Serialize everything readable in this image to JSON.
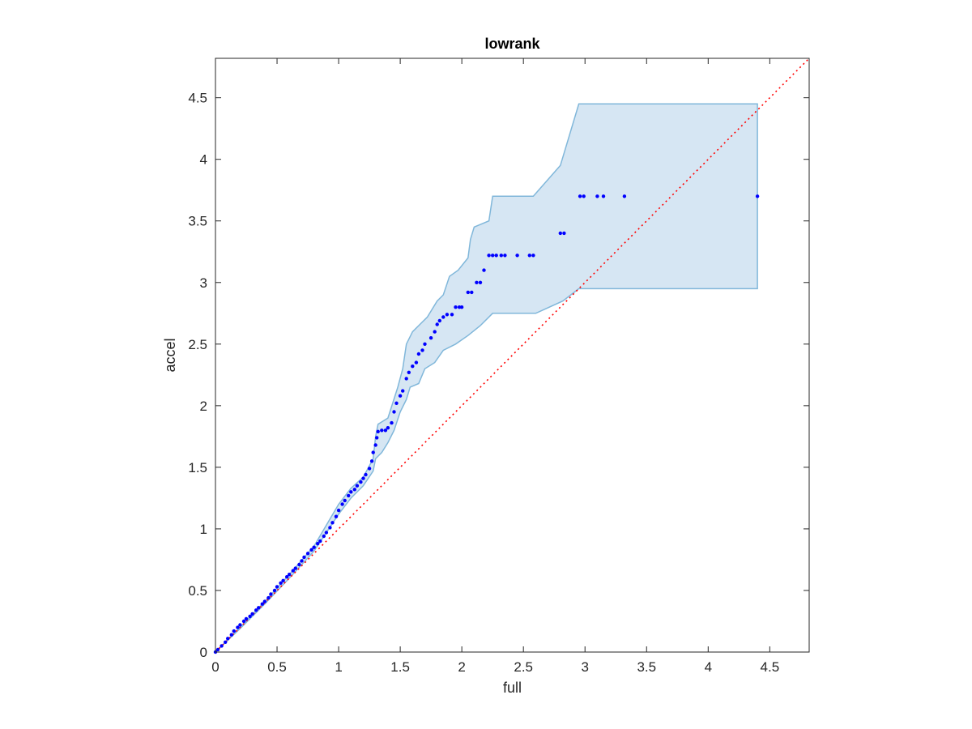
{
  "chart_data": {
    "type": "scatter",
    "title": "lowrank",
    "xlabel": "full",
    "ylabel": "accel",
    "xlim": [
      0,
      4.82
    ],
    "ylim": [
      0,
      4.82
    ],
    "grid": false,
    "xticks": [
      0,
      0.5,
      1,
      1.5,
      2,
      2.5,
      3,
      3.5,
      4,
      4.5
    ],
    "yticks": [
      0,
      0.5,
      1,
      1.5,
      2,
      2.5,
      3,
      3.5,
      4,
      4.5
    ],
    "xtick_labels": [
      "0",
      "0.5",
      "1",
      "1.5",
      "2",
      "2.5",
      "3",
      "3.5",
      "4",
      "4.5"
    ],
    "ytick_labels": [
      "0",
      "0.5",
      "1",
      "1.5",
      "2",
      "2.5",
      "3",
      "3.5",
      "4",
      "4.5"
    ],
    "colors": {
      "points": "#0000ff",
      "band_fill": "#d6e6f3",
      "band_edge": "#80b7da",
      "reference_line": "#ff0000",
      "axes": "#262626"
    },
    "reference_line": {
      "style": "dotted",
      "from": [
        0,
        0
      ],
      "to": [
        4.82,
        4.82
      ]
    },
    "band": {
      "upper": [
        [
          0,
          0
        ],
        [
          0.2,
          0.2
        ],
        [
          0.4,
          0.41
        ],
        [
          0.6,
          0.63
        ],
        [
          0.8,
          0.86
        ],
        [
          1.0,
          1.2
        ],
        [
          1.1,
          1.33
        ],
        [
          1.2,
          1.42
        ],
        [
          1.28,
          1.57
        ],
        [
          1.3,
          1.75
        ],
        [
          1.32,
          1.85
        ],
        [
          1.4,
          1.9
        ],
        [
          1.48,
          2.15
        ],
        [
          1.52,
          2.3
        ],
        [
          1.55,
          2.5
        ],
        [
          1.6,
          2.6
        ],
        [
          1.65,
          2.65
        ],
        [
          1.72,
          2.72
        ],
        [
          1.8,
          2.85
        ],
        [
          1.85,
          2.9
        ],
        [
          1.9,
          3.05
        ],
        [
          1.97,
          3.1
        ],
        [
          2.05,
          3.2
        ],
        [
          2.07,
          3.35
        ],
        [
          2.1,
          3.45
        ],
        [
          2.22,
          3.5
        ],
        [
          2.25,
          3.7
        ],
        [
          2.58,
          3.7
        ],
        [
          2.8,
          3.95
        ],
        [
          2.95,
          4.45
        ],
        [
          4.4,
          4.45
        ]
      ],
      "lower": [
        [
          0,
          0
        ],
        [
          0.2,
          0.19
        ],
        [
          0.4,
          0.39
        ],
        [
          0.6,
          0.6
        ],
        [
          0.8,
          0.82
        ],
        [
          1.0,
          1.12
        ],
        [
          1.1,
          1.25
        ],
        [
          1.2,
          1.35
        ],
        [
          1.28,
          1.47
        ],
        [
          1.3,
          1.57
        ],
        [
          1.35,
          1.62
        ],
        [
          1.4,
          1.7
        ],
        [
          1.45,
          1.8
        ],
        [
          1.5,
          1.95
        ],
        [
          1.55,
          2.05
        ],
        [
          1.58,
          2.15
        ],
        [
          1.65,
          2.18
        ],
        [
          1.7,
          2.3
        ],
        [
          1.78,
          2.35
        ],
        [
          1.85,
          2.45
        ],
        [
          1.95,
          2.5
        ],
        [
          2.05,
          2.57
        ],
        [
          2.15,
          2.65
        ],
        [
          2.25,
          2.75
        ],
        [
          2.6,
          2.75
        ],
        [
          2.82,
          2.85
        ],
        [
          2.95,
          2.95
        ],
        [
          4.4,
          2.95
        ]
      ]
    },
    "series": [
      {
        "points": [
          [
            0,
            0
          ],
          [
            0.02,
            0.02
          ],
          [
            0.05,
            0.05
          ],
          [
            0.08,
            0.08
          ],
          [
            0.1,
            0.11
          ],
          [
            0.13,
            0.14
          ],
          [
            0.15,
            0.17
          ],
          [
            0.18,
            0.2
          ],
          [
            0.2,
            0.22
          ],
          [
            0.23,
            0.25
          ],
          [
            0.25,
            0.27
          ],
          [
            0.28,
            0.29
          ],
          [
            0.3,
            0.31
          ],
          [
            0.33,
            0.34
          ],
          [
            0.35,
            0.36
          ],
          [
            0.38,
            0.39
          ],
          [
            0.4,
            0.41
          ],
          [
            0.43,
            0.44
          ],
          [
            0.45,
            0.47
          ],
          [
            0.48,
            0.5
          ],
          [
            0.5,
            0.53
          ],
          [
            0.53,
            0.56
          ],
          [
            0.55,
            0.58
          ],
          [
            0.58,
            0.61
          ],
          [
            0.6,
            0.63
          ],
          [
            0.63,
            0.66
          ],
          [
            0.65,
            0.68
          ],
          [
            0.68,
            0.71
          ],
          [
            0.7,
            0.74
          ],
          [
            0.72,
            0.77
          ],
          [
            0.75,
            0.8
          ],
          [
            0.78,
            0.83
          ],
          [
            0.8,
            0.85
          ],
          [
            0.83,
            0.88
          ],
          [
            0.85,
            0.9
          ],
          [
            0.88,
            0.94
          ],
          [
            0.9,
            0.97
          ],
          [
            0.93,
            1.01
          ],
          [
            0.95,
            1.05
          ],
          [
            0.98,
            1.1
          ],
          [
            1.0,
            1.15
          ],
          [
            1.03,
            1.2
          ],
          [
            1.05,
            1.23
          ],
          [
            1.08,
            1.27
          ],
          [
            1.1,
            1.3
          ],
          [
            1.13,
            1.32
          ],
          [
            1.15,
            1.35
          ],
          [
            1.18,
            1.38
          ],
          [
            1.2,
            1.41
          ],
          [
            1.22,
            1.44
          ],
          [
            1.25,
            1.49
          ],
          [
            1.27,
            1.55
          ],
          [
            1.28,
            1.62
          ],
          [
            1.3,
            1.68
          ],
          [
            1.31,
            1.74
          ],
          [
            1.32,
            1.79
          ],
          [
            1.35,
            1.8
          ],
          [
            1.38,
            1.8
          ],
          [
            1.4,
            1.82
          ],
          [
            1.43,
            1.86
          ],
          [
            1.45,
            1.95
          ],
          [
            1.47,
            2.02
          ],
          [
            1.5,
            2.08
          ],
          [
            1.52,
            2.12
          ],
          [
            1.55,
            2.22
          ],
          [
            1.57,
            2.27
          ],
          [
            1.6,
            2.32
          ],
          [
            1.63,
            2.35
          ],
          [
            1.65,
            2.42
          ],
          [
            1.68,
            2.45
          ],
          [
            1.7,
            2.5
          ],
          [
            1.75,
            2.55
          ],
          [
            1.78,
            2.6
          ],
          [
            1.8,
            2.66
          ],
          [
            1.82,
            2.69
          ],
          [
            1.85,
            2.72
          ],
          [
            1.88,
            2.74
          ],
          [
            1.92,
            2.74
          ],
          [
            1.95,
            2.8
          ],
          [
            1.98,
            2.8
          ],
          [
            2.0,
            2.8
          ],
          [
            2.05,
            2.92
          ],
          [
            2.08,
            2.92
          ],
          [
            2.12,
            3.0
          ],
          [
            2.15,
            3.0
          ],
          [
            2.18,
            3.1
          ],
          [
            2.22,
            3.22
          ],
          [
            2.25,
            3.22
          ],
          [
            2.28,
            3.22
          ],
          [
            2.32,
            3.22
          ],
          [
            2.35,
            3.22
          ],
          [
            2.45,
            3.22
          ],
          [
            2.55,
            3.22
          ],
          [
            2.58,
            3.22
          ],
          [
            2.8,
            3.4
          ],
          [
            2.83,
            3.4
          ],
          [
            2.96,
            3.7
          ],
          [
            2.99,
            3.7
          ],
          [
            3.1,
            3.7
          ],
          [
            3.15,
            3.7
          ],
          [
            3.32,
            3.7
          ],
          [
            4.4,
            3.7
          ]
        ]
      }
    ]
  }
}
